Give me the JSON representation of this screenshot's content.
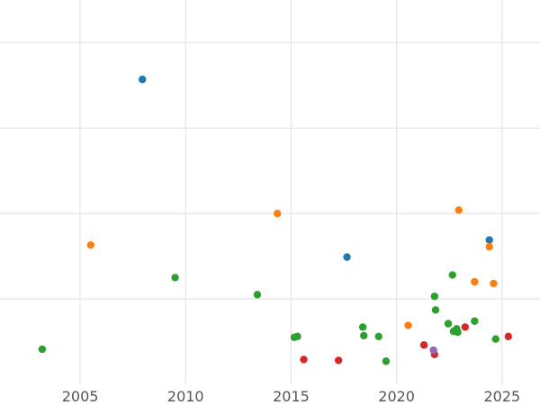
{
  "chart_data": {
    "type": "scatter",
    "xlim": [
      2001.2,
      2026.8
    ],
    "ylim": [
      0,
      4.5
    ],
    "grid": true,
    "x_ticks": [
      "2005",
      "2010",
      "2015",
      "2020",
      "2025"
    ],
    "series": [
      {
        "color": "#1f77b4",
        "points": [
          [
            2007.95,
            3.57
          ],
          [
            2017.65,
            1.49
          ],
          [
            2024.4,
            1.69
          ]
        ]
      },
      {
        "color": "#ff7f0e",
        "points": [
          [
            2005.5,
            1.63
          ],
          [
            2014.35,
            2.0
          ],
          [
            2022.95,
            2.04
          ],
          [
            2020.55,
            0.69
          ],
          [
            2023.7,
            1.2
          ],
          [
            2024.4,
            1.61
          ],
          [
            2024.6,
            1.18
          ]
        ]
      },
      {
        "color": "#2ca02c",
        "points": [
          [
            2003.2,
            0.41
          ],
          [
            2009.5,
            1.25
          ],
          [
            2013.4,
            1.05
          ],
          [
            2015.15,
            0.55
          ],
          [
            2015.3,
            0.56
          ],
          [
            2018.4,
            0.67
          ],
          [
            2018.45,
            0.57
          ],
          [
            2019.15,
            0.56
          ],
          [
            2019.5,
            0.27
          ],
          [
            2021.8,
            1.03
          ],
          [
            2021.85,
            0.87
          ],
          [
            2022.45,
            0.71
          ],
          [
            2022.65,
            1.28
          ],
          [
            2022.7,
            0.62
          ],
          [
            2022.85,
            0.65
          ],
          [
            2022.9,
            0.61
          ],
          [
            2023.7,
            0.74
          ],
          [
            2024.7,
            0.53
          ]
        ]
      },
      {
        "color": "#d62728",
        "points": [
          [
            2015.6,
            0.29
          ],
          [
            2017.25,
            0.28
          ],
          [
            2021.3,
            0.46
          ],
          [
            2021.8,
            0.35
          ],
          [
            2023.25,
            0.67
          ],
          [
            2025.3,
            0.56
          ]
        ]
      },
      {
        "color": "#9467bd",
        "points": [
          [
            2021.75,
            0.4
          ]
        ]
      }
    ]
  }
}
